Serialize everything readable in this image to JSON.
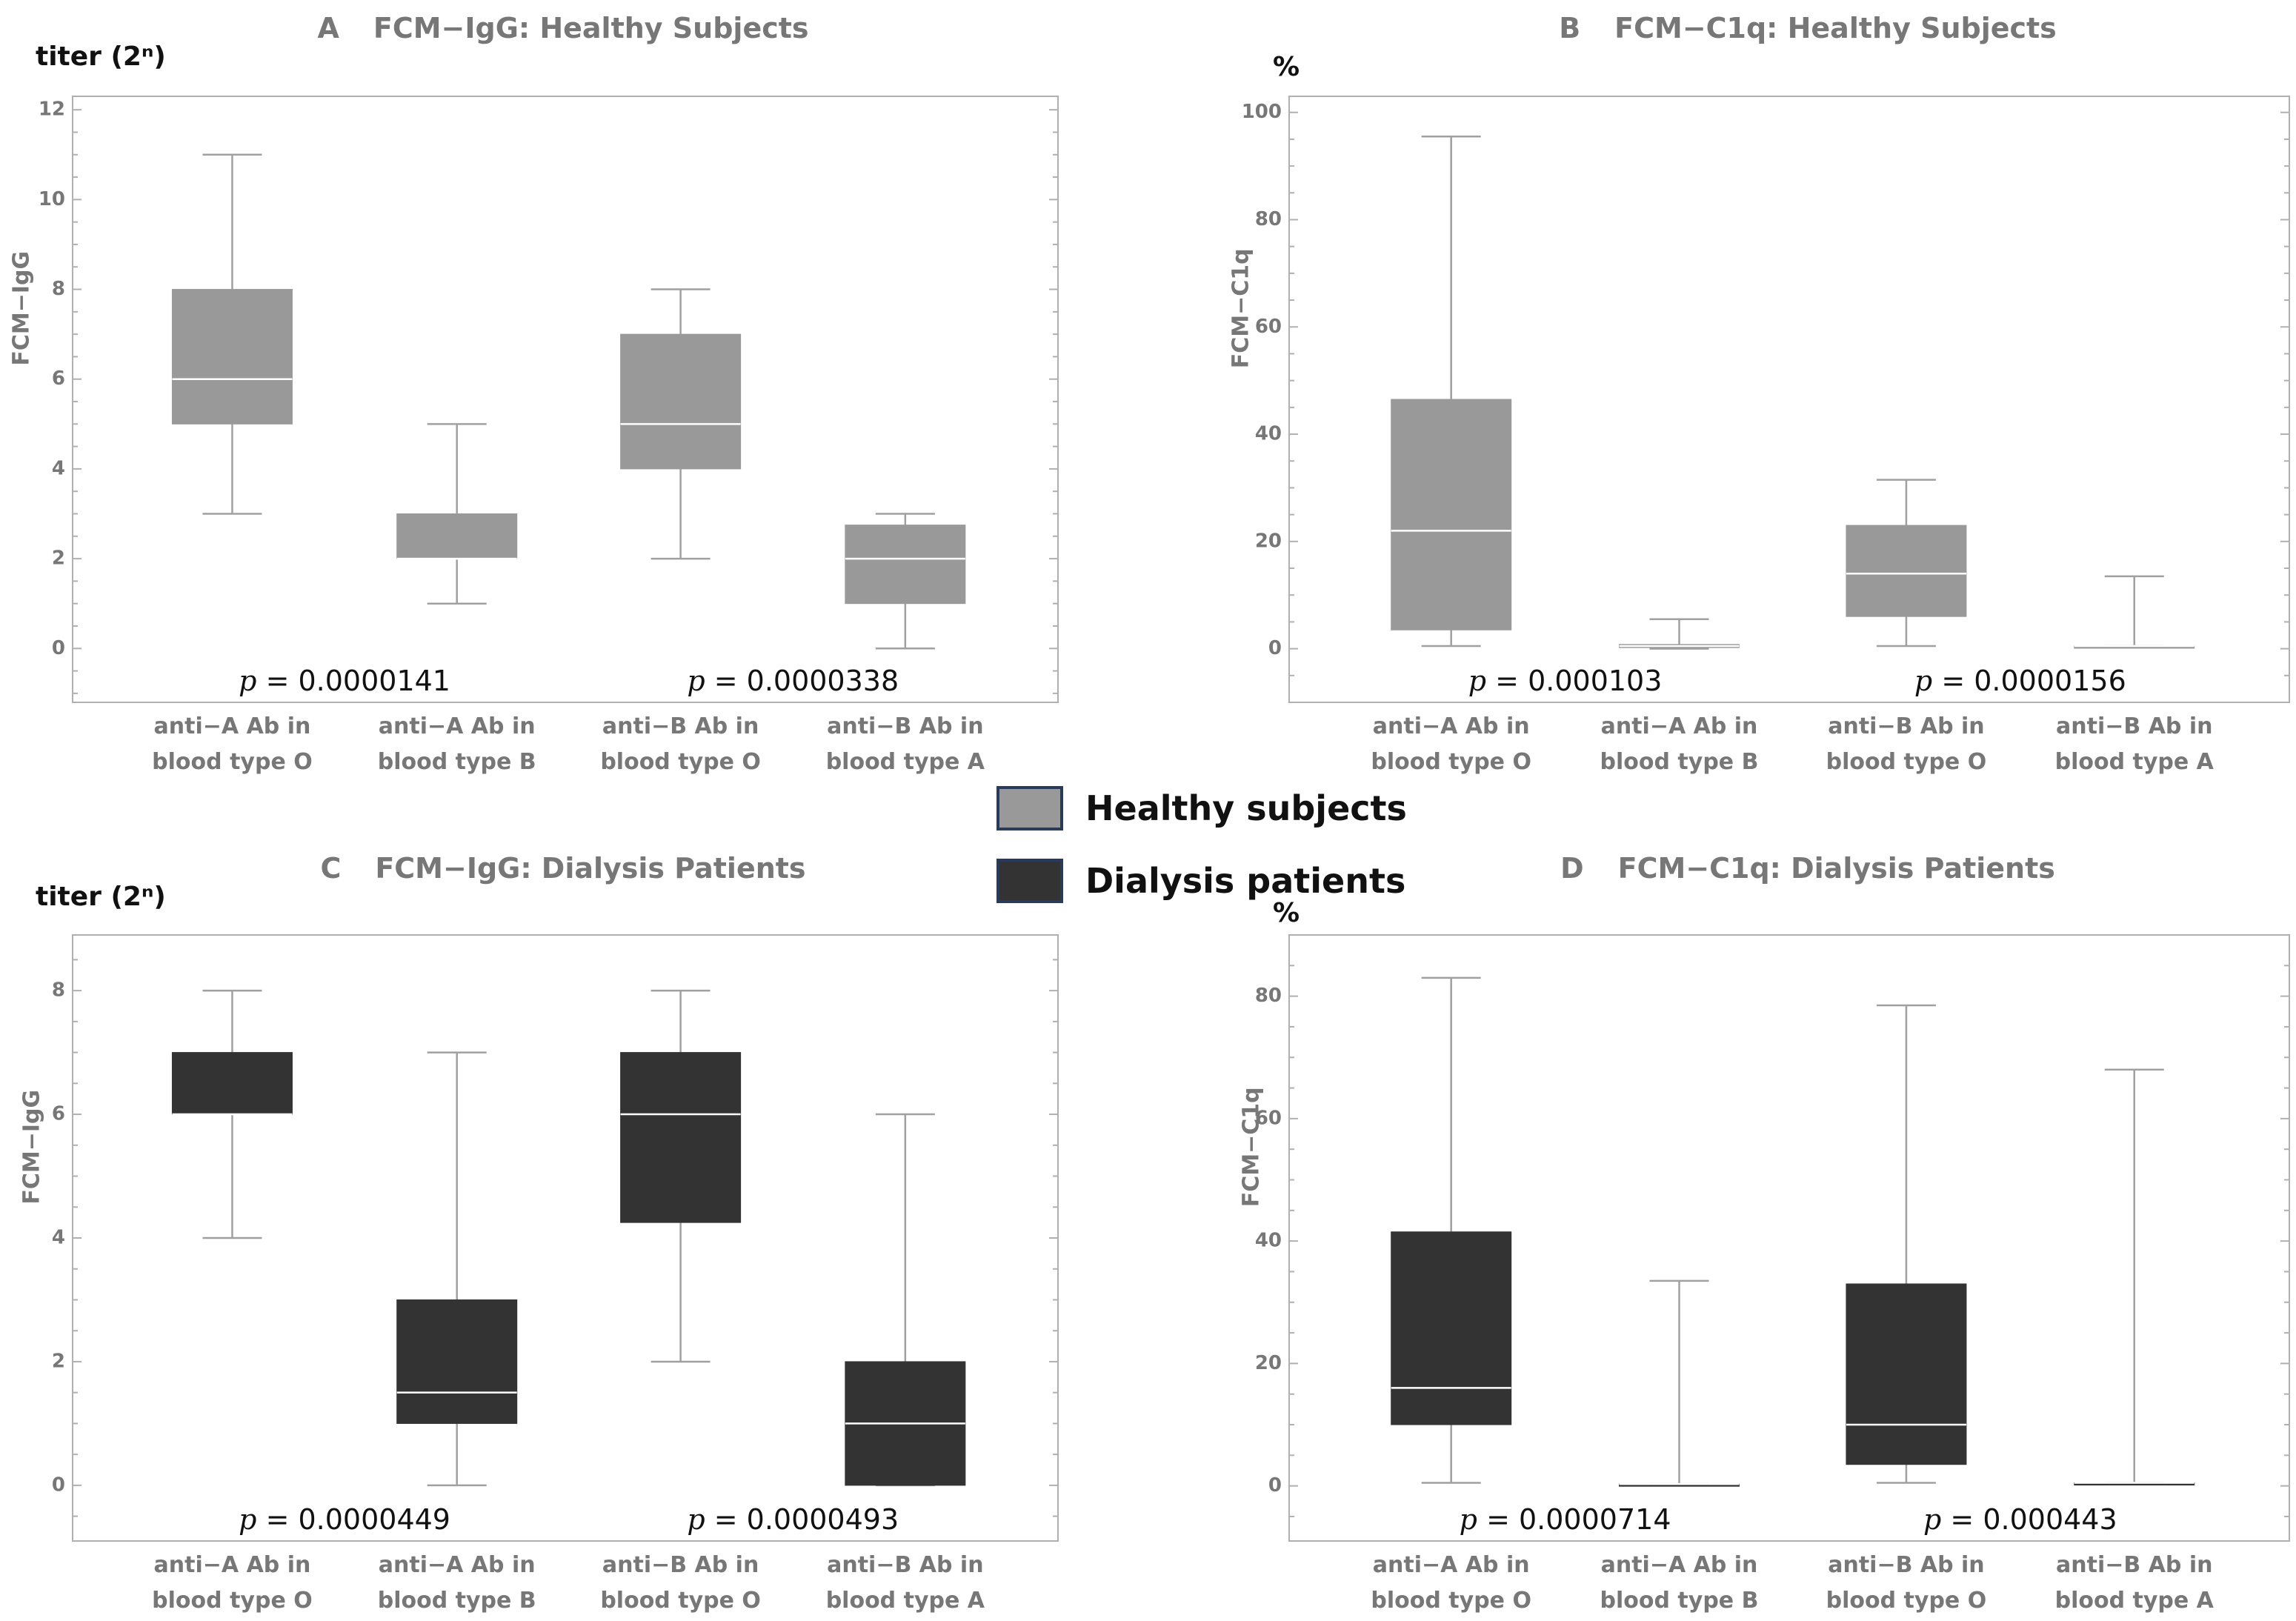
{
  "legend": {
    "healthy_label": "Healthy subjects",
    "dialysis_label": "Dialysis patients",
    "healthy_color": "#999999",
    "dialysis_color": "#333333"
  },
  "chart_data": [
    {
      "type": "box",
      "panel_letter": "A",
      "title": "FCM−IgG: Healthy Subjects",
      "unit_label": "titer (2ⁿ)",
      "ylabel": "FCM−IgG",
      "ylim": [
        -1.2,
        12.3
      ],
      "yticks": [
        0,
        2,
        4,
        6,
        8,
        10,
        12
      ],
      "categories": [
        [
          "anti−A Ab in",
          "blood type O"
        ],
        [
          "anti−A Ab in",
          "blood type B"
        ],
        [
          "anti−B Ab in",
          "blood type O"
        ],
        [
          "anti−B Ab in",
          "blood type A"
        ]
      ],
      "fill": "#999999",
      "boxes": [
        {
          "min": 3,
          "q1": 5,
          "median": 6,
          "q3": 8,
          "max": 11
        },
        {
          "min": 1,
          "q1": 2,
          "median": 2,
          "q3": 3,
          "max": 5
        },
        {
          "min": 2,
          "q1": 4,
          "median": 5,
          "q3": 7,
          "max": 8
        },
        {
          "min": 0,
          "q1": 1,
          "median": 2,
          "q3": 2.75,
          "max": 3
        }
      ],
      "pvalues": [
        {
          "prefix": "p",
          "text": " = 0.0000141",
          "between": [
            0,
            1
          ]
        },
        {
          "prefix": "p",
          "text": " = 0.0000338",
          "between": [
            2,
            3
          ]
        }
      ]
    },
    {
      "type": "box",
      "panel_letter": "B",
      "title": "FCM−C1q: Healthy Subjects",
      "unit_label": "%",
      "ylabel": "FCM−C1q",
      "ylim": [
        -10,
        103
      ],
      "yticks": [
        0,
        20,
        40,
        60,
        80,
        100
      ],
      "categories": [
        [
          "anti−A Ab in",
          "blood type O"
        ],
        [
          "anti−A Ab in",
          "blood type B"
        ],
        [
          "anti−B Ab in",
          "blood type O"
        ],
        [
          "anti−B Ab in",
          "blood type A"
        ]
      ],
      "fill": "#999999",
      "boxes": [
        {
          "min": 0.5,
          "q1": 3.5,
          "median": 22,
          "q3": 46.5,
          "max": 95.5
        },
        {
          "min": 0,
          "q1": 0.2,
          "median": 0.5,
          "q3": 0.8,
          "max": 5.5
        },
        {
          "min": 0.5,
          "q1": 6,
          "median": 14,
          "q3": 23,
          "max": 31.5
        },
        {
          "min": 0.5,
          "q1": 0.5,
          "median": 0.5,
          "q3": 0.5,
          "max": 13.5
        }
      ],
      "pvalues": [
        {
          "prefix": "p",
          "text": " = 0.000103",
          "between": [
            0,
            1
          ]
        },
        {
          "prefix": "p",
          "text": " = 0.0000156",
          "between": [
            2,
            3
          ]
        }
      ]
    },
    {
      "type": "box",
      "panel_letter": "C",
      "title": "FCM−IgG: Dialysis Patients",
      "unit_label": "titer (2ⁿ)",
      "ylabel": "FCM−IgG",
      "ylim": [
        -0.9,
        8.9
      ],
      "yticks": [
        0,
        2,
        4,
        6,
        8
      ],
      "categories": [
        [
          "anti−A Ab in",
          "blood type O"
        ],
        [
          "anti−A Ab in",
          "blood type B"
        ],
        [
          "anti−B Ab in",
          "blood type O"
        ],
        [
          "anti−B Ab in",
          "blood type A"
        ]
      ],
      "fill": "#333333",
      "boxes": [
        {
          "min": 4,
          "q1": 6,
          "median": 6,
          "q3": 7,
          "max": 8
        },
        {
          "min": 0,
          "q1": 1,
          "median": 1.5,
          "q3": 3,
          "max": 7
        },
        {
          "min": 2,
          "q1": 4.25,
          "median": 6,
          "q3": 7,
          "max": 8
        },
        {
          "min": 0,
          "q1": 0,
          "median": 1,
          "q3": 2,
          "max": 6
        }
      ],
      "pvalues": [
        {
          "prefix": "p",
          "text": " = 0.0000449",
          "between": [
            0,
            1
          ]
        },
        {
          "prefix": "p",
          "text": " = 0.0000493",
          "between": [
            2,
            3
          ]
        }
      ]
    },
    {
      "type": "box",
      "panel_letter": "D",
      "title": "FCM−C1q: Dialysis Patients",
      "unit_label": "%",
      "ylabel": "FCM−C1q",
      "ylim": [
        -9,
        90
      ],
      "yticks": [
        0,
        20,
        40,
        60,
        80
      ],
      "categories": [
        [
          "anti−A Ab in",
          "blood type O"
        ],
        [
          "anti−A Ab in",
          "blood type B"
        ],
        [
          "anti−B Ab in",
          "blood type O"
        ],
        [
          "anti−B Ab in",
          "blood type A"
        ]
      ],
      "fill": "#333333",
      "boxes": [
        {
          "min": 0.5,
          "q1": 10,
          "median": 16,
          "q3": 41.5,
          "max": 83
        },
        {
          "min": 0.3,
          "q1": 0.3,
          "median": 0.3,
          "q3": 0.3,
          "max": 33.5
        },
        {
          "min": 0.5,
          "q1": 3.5,
          "median": 10,
          "q3": 33,
          "max": 78.5
        },
        {
          "min": 0.5,
          "q1": 0.5,
          "median": 0.5,
          "q3": 0.5,
          "max": 68
        }
      ],
      "pvalues": [
        {
          "prefix": "p",
          "text": " = 0.0000714",
          "between": [
            0,
            1
          ]
        },
        {
          "prefix": "p",
          "text": " = 0.000443",
          "between": [
            2,
            3
          ]
        }
      ]
    }
  ]
}
